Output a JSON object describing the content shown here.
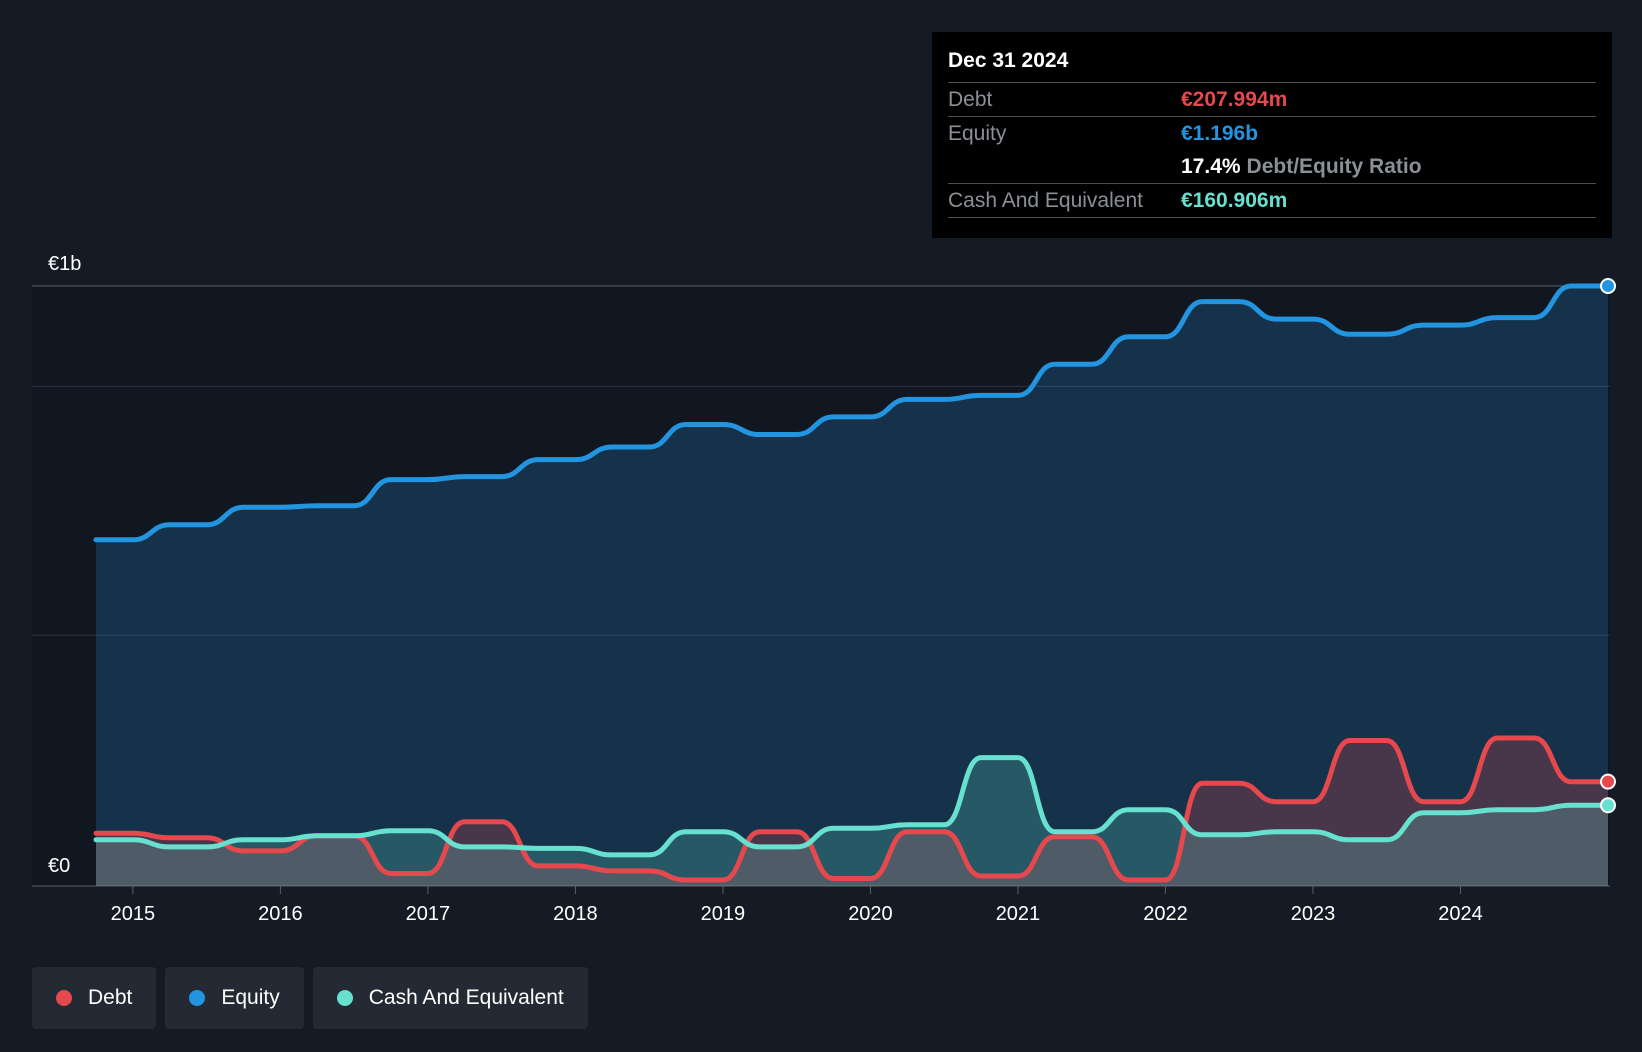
{
  "chart_data": {
    "type": "area",
    "title": "",
    "xlabel": "",
    "ylabel": "",
    "x_range": [
      2014.75,
      2025.0
    ],
    "ylim": [
      0,
      1.196
    ],
    "y_tick_labels": [
      {
        "value": 0,
        "label": "€0"
      },
      {
        "value": 1.196,
        "label": "€1b"
      }
    ],
    "gridlines": [
      0.996,
      0.5
    ],
    "x_ticks": [
      {
        "value": 2015.0,
        "label": "2015"
      },
      {
        "value": 2016.0,
        "label": "2016"
      },
      {
        "value": 2017.0,
        "label": "2017"
      },
      {
        "value": 2018.0,
        "label": "2018"
      },
      {
        "value": 2019.0,
        "label": "2019"
      },
      {
        "value": 2020.0,
        "label": "2020"
      },
      {
        "value": 2021.0,
        "label": "2021"
      },
      {
        "value": 2022.0,
        "label": "2022"
      },
      {
        "value": 2023.0,
        "label": "2023"
      },
      {
        "value": 2024.0,
        "label": "2024"
      }
    ],
    "series": [
      {
        "name": "Equity",
        "color": "#2394df",
        "x": [
          2014.75,
          2015.0,
          2015.25,
          2015.5,
          2015.75,
          2016.0,
          2016.25,
          2016.5,
          2016.75,
          2017.0,
          2017.25,
          2017.5,
          2017.75,
          2018.0,
          2018.25,
          2018.5,
          2018.75,
          2019.0,
          2019.25,
          2019.5,
          2019.75,
          2020.0,
          2020.25,
          2020.5,
          2020.75,
          2021.0,
          2021.25,
          2021.5,
          2021.75,
          2022.0,
          2022.25,
          2022.5,
          2022.75,
          2023.0,
          2023.25,
          2023.5,
          2023.75,
          2024.0,
          2024.25,
          2024.5,
          2024.75,
          2025.0
        ],
        "values": [
          0.69,
          0.69,
          0.72,
          0.72,
          0.755,
          0.755,
          0.758,
          0.758,
          0.81,
          0.81,
          0.816,
          0.816,
          0.85,
          0.85,
          0.875,
          0.875,
          0.92,
          0.92,
          0.9,
          0.9,
          0.935,
          0.935,
          0.97,
          0.97,
          0.978,
          0.978,
          1.04,
          1.04,
          1.095,
          1.095,
          1.165,
          1.165,
          1.13,
          1.13,
          1.1,
          1.1,
          1.118,
          1.118,
          1.133,
          1.133,
          1.196,
          1.196
        ]
      },
      {
        "name": "Debt",
        "color": "#e5484d",
        "x": [
          2014.75,
          2015.0,
          2015.25,
          2015.5,
          2015.75,
          2016.0,
          2016.25,
          2016.5,
          2016.75,
          2017.0,
          2017.25,
          2017.5,
          2017.75,
          2018.0,
          2018.25,
          2018.5,
          2018.75,
          2019.0,
          2019.25,
          2019.5,
          2019.75,
          2020.0,
          2020.25,
          2020.5,
          2020.75,
          2021.0,
          2021.25,
          2021.5,
          2021.75,
          2022.0,
          2022.25,
          2022.5,
          2022.75,
          2023.0,
          2023.25,
          2023.5,
          2023.75,
          2024.0,
          2024.25,
          2024.5,
          2024.75,
          2025.0
        ],
        "values": [
          0.105,
          0.105,
          0.096,
          0.096,
          0.07,
          0.07,
          0.1,
          0.1,
          0.025,
          0.025,
          0.128,
          0.128,
          0.04,
          0.04,
          0.03,
          0.03,
          0.012,
          0.012,
          0.108,
          0.108,
          0.015,
          0.015,
          0.108,
          0.108,
          0.02,
          0.02,
          0.098,
          0.098,
          0.012,
          0.012,
          0.205,
          0.205,
          0.168,
          0.168,
          0.29,
          0.29,
          0.168,
          0.168,
          0.295,
          0.295,
          0.208,
          0.208
        ]
      },
      {
        "name": "Cash And Equivalent",
        "color": "#68e0cf",
        "x": [
          2014.75,
          2015.0,
          2015.25,
          2015.5,
          2015.75,
          2016.0,
          2016.25,
          2016.5,
          2016.75,
          2017.0,
          2017.25,
          2017.5,
          2017.75,
          2018.0,
          2018.25,
          2018.5,
          2018.75,
          2019.0,
          2019.25,
          2019.5,
          2019.75,
          2020.0,
          2020.25,
          2020.5,
          2020.75,
          2021.0,
          2021.25,
          2021.5,
          2021.75,
          2022.0,
          2022.25,
          2022.5,
          2022.75,
          2023.0,
          2023.25,
          2023.5,
          2023.75,
          2024.0,
          2024.25,
          2024.5,
          2024.75,
          2025.0
        ],
        "values": [
          0.092,
          0.092,
          0.078,
          0.078,
          0.092,
          0.092,
          0.1,
          0.1,
          0.11,
          0.11,
          0.078,
          0.078,
          0.075,
          0.075,
          0.062,
          0.062,
          0.108,
          0.108,
          0.078,
          0.078,
          0.115,
          0.115,
          0.122,
          0.122,
          0.256,
          0.256,
          0.108,
          0.108,
          0.152,
          0.152,
          0.102,
          0.102,
          0.108,
          0.108,
          0.092,
          0.092,
          0.146,
          0.146,
          0.152,
          0.152,
          0.161,
          0.161
        ]
      }
    ]
  },
  "tooltip": {
    "date": "Dec 31 2024",
    "debt_label": "Debt",
    "debt_value": "€207.994m",
    "equity_label": "Equity",
    "equity_value": "€1.196b",
    "ratio_value": "17.4%",
    "ratio_text": "Debt/Equity Ratio",
    "cash_label": "Cash And Equivalent",
    "cash_value": "€160.906m"
  },
  "legend": {
    "items": [
      {
        "label": "Debt",
        "color": "#e5484d"
      },
      {
        "label": "Equity",
        "color": "#2394df"
      },
      {
        "label": "Cash And Equivalent",
        "color": "#68e0cf"
      }
    ]
  }
}
